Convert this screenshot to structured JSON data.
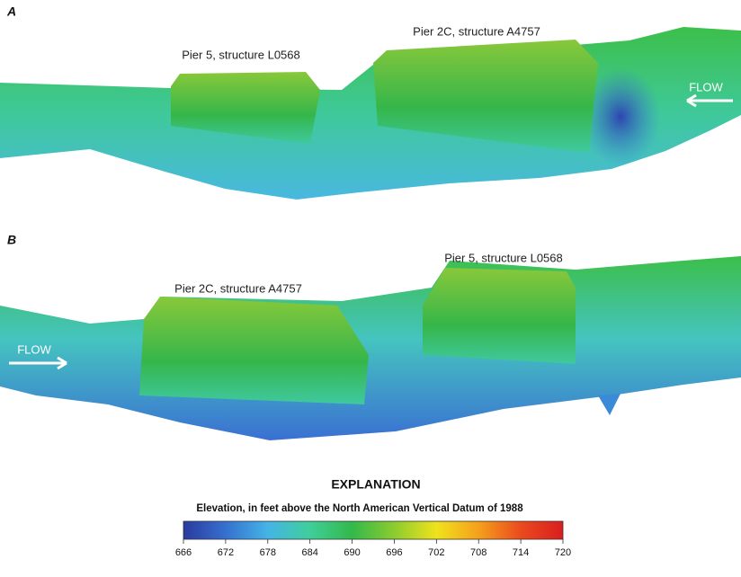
{
  "panels": [
    {
      "label": "A",
      "piers": [
        "Pier 5, structure L0568",
        "Pier 2C, structure A4757"
      ],
      "flow": "FLOW"
    },
    {
      "label": "B",
      "piers": [
        "Pier 2C, structure A4757",
        "Pier 5, structure L0568"
      ],
      "flow": "FLOW"
    }
  ],
  "explanation": {
    "title": "EXPLANATION",
    "subtitle": "Elevation, in feet above the North American Vertical Datum of 1988",
    "range": [
      666,
      720
    ],
    "ticks": [
      666,
      672,
      678,
      684,
      690,
      696,
      702,
      708,
      714,
      720
    ],
    "colors": [
      "#2b3a9e",
      "#3570d0",
      "#45b4e6",
      "#3fcf9a",
      "#33b84a",
      "#8ccc2e",
      "#f0e21c",
      "#f5a01c",
      "#ea4a1e",
      "#d91e1e"
    ]
  }
}
